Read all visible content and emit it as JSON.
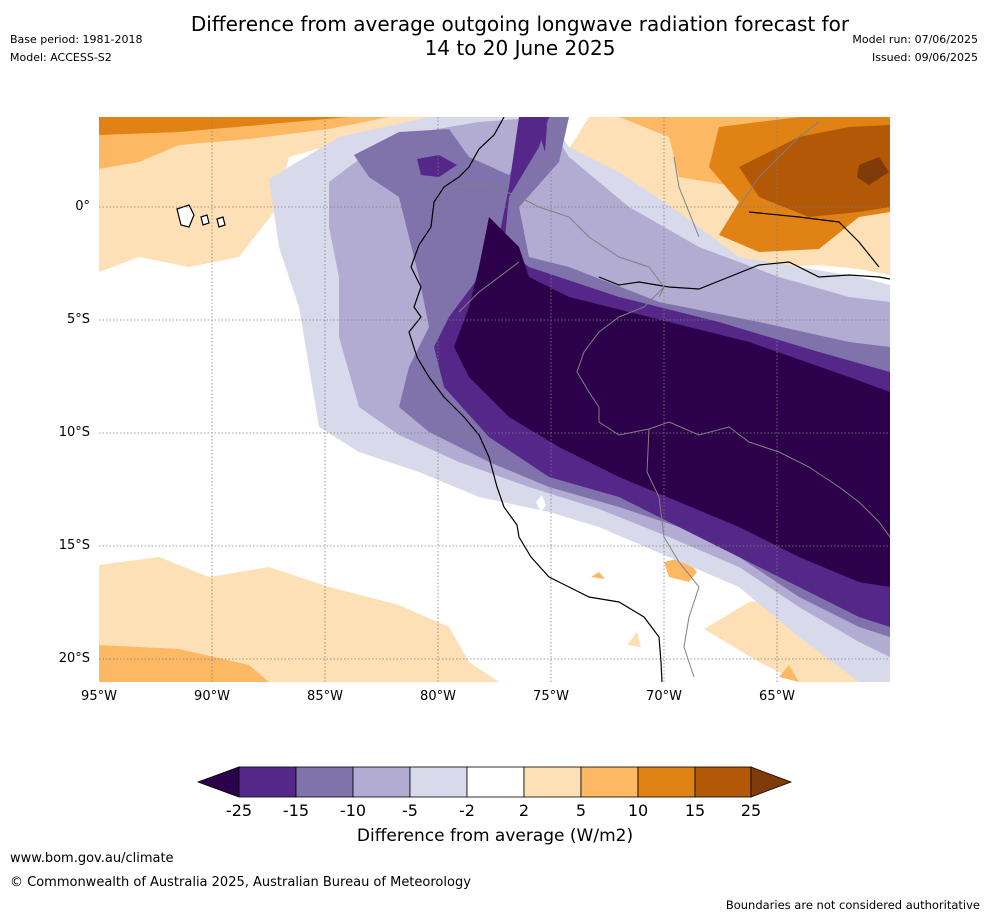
{
  "title": "Difference from average outgoing longwave radiation forecast for\n14 to 20 June 2025",
  "meta": {
    "base_period": "Base period: 1981-2018",
    "model": "Model: ACCESS-S2",
    "model_run": "Model run: 07/06/2025",
    "issued": "Issued: 09/06/2025"
  },
  "axes": {
    "lat_ticks": [
      "0°",
      "5°S",
      "10°S",
      "15°S",
      "20°S"
    ],
    "lon_ticks": [
      "95°W",
      "90°W",
      "85°W",
      "80°W",
      "75°W",
      "70°W",
      "65°W"
    ]
  },
  "colorbar": {
    "title": "Difference from average (W/m2)",
    "labels": [
      "-25",
      "-15",
      "-10",
      "-5",
      "-2",
      "2",
      "5",
      "10",
      "15",
      "25"
    ],
    "colors": [
      "#2d004b",
      "#542788",
      "#8073ac",
      "#b2abd2",
      "#d8daeb",
      "#ffffff",
      "#fee0b6",
      "#fdb863",
      "#e08214",
      "#b35806",
      "#7f3b08"
    ]
  },
  "footer": {
    "url": "www.bom.gov.au/climate",
    "copyright": "© Commonwealth of Australia 2025, Australian Bureau of Meteorology",
    "note": "Boundaries are not considered authoritative"
  }
}
